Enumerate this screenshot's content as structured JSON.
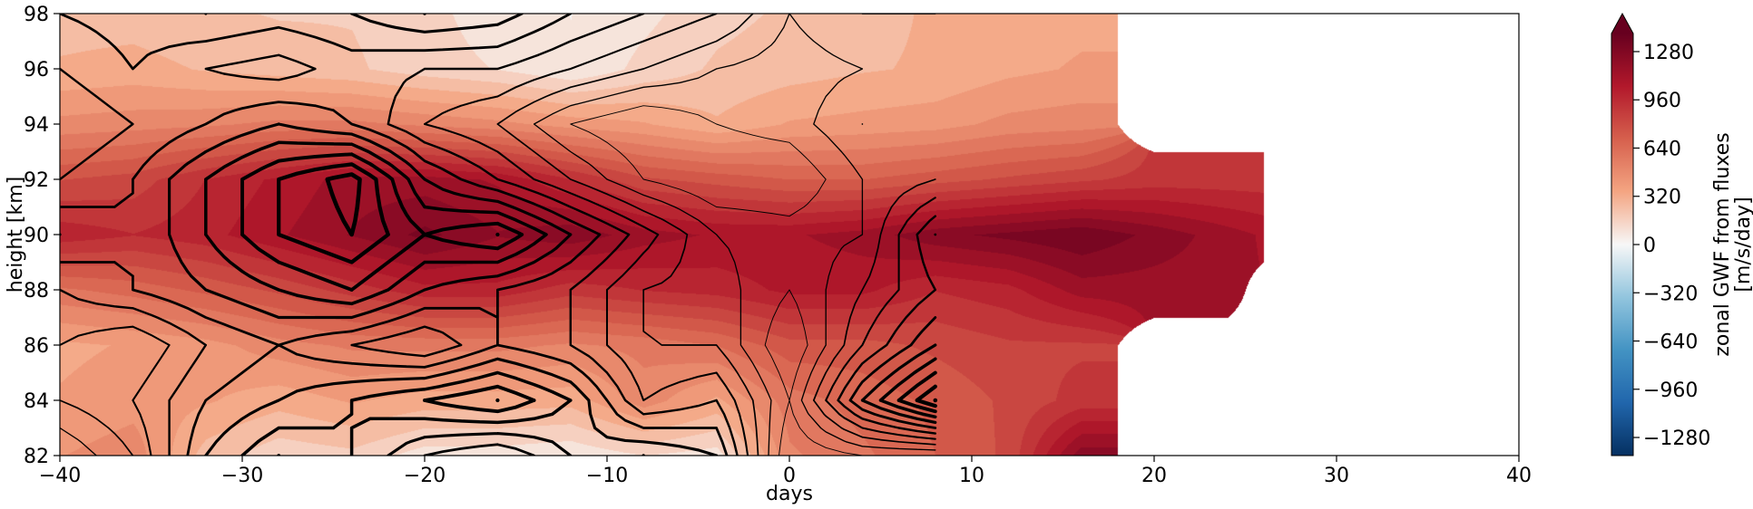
{
  "chart_data": {
    "type": "heatmap",
    "title": "",
    "xlabel": "days",
    "ylabel": "height [km]",
    "xlim": [
      -40,
      40
    ],
    "ylim": [
      82,
      98
    ],
    "x_ticks": [
      -40,
      -30,
      -20,
      -10,
      0,
      10,
      20,
      30,
      40
    ],
    "x_tick_labels": [
      "−40",
      "−30",
      "−20",
      "−10",
      "0",
      "10",
      "20",
      "30",
      "40"
    ],
    "y_ticks": [
      82,
      84,
      86,
      88,
      90,
      92,
      94,
      96,
      98
    ],
    "y_tick_labels": [
      "82",
      "84",
      "86",
      "88",
      "90",
      "92",
      "94",
      "96",
      "98"
    ],
    "x": [
      -40,
      -36,
      -32,
      -28,
      -24,
      -20,
      -16,
      -12,
      -8,
      -4,
      0,
      4,
      8,
      12,
      16,
      20,
      24,
      26
    ],
    "y": [
      82,
      84,
      86,
      88,
      90,
      92,
      94,
      96,
      98
    ],
    "data_extent_days": [
      -40,
      26
    ],
    "z_filled": [
      [
        450,
        500,
        250,
        150,
        180,
        80,
        80,
        50,
        120,
        80,
        520,
        600,
        700,
        800,
        1250,
        null,
        null,
        null
      ],
      [
        380,
        420,
        380,
        320,
        380,
        330,
        330,
        320,
        500,
        350,
        580,
        650,
        720,
        800,
        900,
        null,
        null,
        null
      ],
      [
        350,
        380,
        420,
        500,
        550,
        560,
        560,
        520,
        560,
        620,
        750,
        750,
        800,
        850,
        850,
        null,
        null,
        null
      ],
      [
        600,
        650,
        720,
        800,
        900,
        1000,
        1000,
        900,
        950,
        980,
        1050,
        1050,
        950,
        1000,
        1150,
        1150,
        1150,
        null
      ],
      [
        1000,
        950,
        1000,
        1100,
        1200,
        1300,
        1200,
        1250,
        1150,
        1100,
        1100,
        1150,
        1250,
        1300,
        1350,
        1250,
        1150,
        1100
      ],
      [
        780,
        820,
        950,
        1050,
        1150,
        1150,
        1100,
        950,
        800,
        750,
        700,
        700,
        750,
        800,
        850,
        900,
        900,
        900
      ],
      [
        480,
        500,
        520,
        560,
        560,
        520,
        480,
        420,
        380,
        300,
        380,
        400,
        420,
        480,
        500,
        null,
        null,
        null
      ],
      [
        300,
        320,
        280,
        250,
        220,
        160,
        120,
        50,
        150,
        220,
        250,
        280,
        300,
        350,
        380,
        null,
        null,
        null
      ],
      [
        250,
        250,
        220,
        200,
        200,
        150,
        80,
        40,
        100,
        180,
        220,
        260,
        300,
        330,
        350,
        null,
        null,
        null
      ]
    ],
    "z_contour": [
      [
        300,
        500,
        900,
        1100,
        1000,
        800,
        700,
        900,
        1000,
        900,
        200,
        300,
        300,
        0,
        0,
        0,
        0,
        0
      ],
      [
        500,
        600,
        800,
        900,
        1000,
        1100,
        1200,
        1000,
        600,
        700,
        300,
        900,
        1300,
        0,
        0,
        0,
        0,
        0
      ],
      [
        600,
        500,
        700,
        800,
        700,
        600,
        800,
        700,
        500,
        500,
        200,
        600,
        900,
        0,
        0,
        0,
        0,
        0
      ],
      [
        700,
        800,
        900,
        1000,
        1100,
        900,
        800,
        700,
        500,
        450,
        300,
        500,
        700,
        0,
        0,
        0,
        0,
        0
      ],
      [
        900,
        800,
        1000,
        1200,
        1300,
        1100,
        1200,
        900,
        650,
        400,
        350,
        400,
        800,
        0,
        0,
        0,
        0,
        0
      ],
      [
        700,
        800,
        1000,
        1200,
        1350,
        900,
        700,
        500,
        300,
        200,
        200,
        400,
        500,
        0,
        0,
        0,
        0,
        0
      ],
      [
        600,
        700,
        800,
        900,
        800,
        600,
        500,
        300,
        200,
        300,
        350,
        500,
        400,
        0,
        0,
        0,
        0,
        0
      ],
      [
        700,
        800,
        700,
        650,
        750,
        700,
        700,
        600,
        500,
        400,
        350,
        400,
        400,
        0,
        0,
        0,
        0,
        0
      ],
      [
        800,
        850,
        900,
        850,
        900,
        1000,
        950,
        800,
        700,
        600,
        400,
        500,
        500,
        0,
        0,
        0,
        0,
        0
      ]
    ],
    "contour_x_extent_days": [
      -40,
      8
    ],
    "colorbar": {
      "label_line1": "zonal GWF from fluxes",
      "label_line2": "[m/s/day]",
      "range": [
        -1400,
        1400
      ],
      "extend": "max",
      "colormap": "RdBu_r",
      "ticks": [
        -1280,
        -960,
        -640,
        -320,
        0,
        320,
        640,
        960,
        1280
      ],
      "tick_labels": [
        "−1280",
        "−960",
        "−640",
        "−320",
        "0",
        "320",
        "640",
        "960",
        "1280"
      ]
    },
    "grid": false,
    "legend": "none"
  },
  "colors": {
    "low": "#053061",
    "mid_low": "#4393c3",
    "center": "#f7f7f7",
    "mid_high": "#f4a582",
    "high": "#b2182b",
    "top": "#67001f",
    "contour_line": "#000000"
  }
}
